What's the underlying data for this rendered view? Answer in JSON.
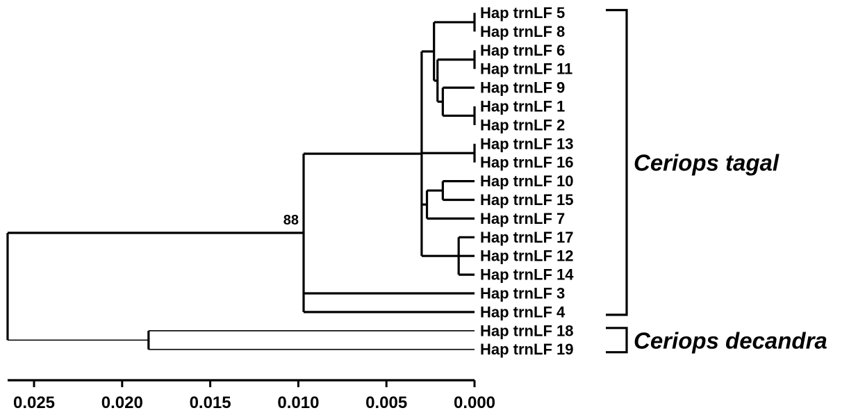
{
  "tree": {
    "tips": [
      "Hap trnLF 5",
      "Hap trnLF 8",
      "Hap trnLF 6",
      "Hap trnLF 11",
      "Hap trnLF 9",
      "Hap trnLF 1",
      "Hap trnLF 2",
      "Hap trnLF 13",
      "Hap trnLF 16",
      "Hap trnLF 10",
      "Hap trnLF 15",
      "Hap trnLF 7",
      "Hap trnLF 17",
      "Hap trnLF 12",
      "Hap trnLF 14",
      "Hap trnLF 3",
      "Hap trnLF 4",
      "Hap trnLF 18",
      "Hap trnLF 19"
    ],
    "nodes": [
      {
        "id": "n58",
        "children": [
          0,
          1
        ],
        "height": 0.0
      },
      {
        "id": "n611",
        "children": [
          2,
          3
        ],
        "height": 0.0
      },
      {
        "id": "n12",
        "children": [
          5,
          6
        ],
        "height": 0.0
      },
      {
        "id": "n912",
        "children": [
          4,
          "n12"
        ],
        "height": 0.0018
      },
      {
        "id": "n6_11_9_12",
        "children": [
          "n611",
          "n912"
        ],
        "height": 0.0021
      },
      {
        "id": "nA",
        "children": [
          "n58",
          "n6_11_9_12"
        ],
        "height": 0.0023
      },
      {
        "id": "n1316",
        "children": [
          7,
          8
        ],
        "height": 0.0
      },
      {
        "id": "n1015",
        "children": [
          9,
          10
        ],
        "height": 0.0018
      },
      {
        "id": "nB",
        "children": [
          "n1015",
          11
        ],
        "height": 0.0027
      },
      {
        "id": "n171214",
        "children": [
          12,
          13,
          14
        ],
        "height": 0.0009
      },
      {
        "id": "nC",
        "children": [
          "nA",
          "n1316",
          "nB",
          "n171214"
        ],
        "height": 0.003
      },
      {
        "id": "nD",
        "children": [
          "nC",
          15,
          16
        ],
        "height": 0.0097
      },
      {
        "id": "nE",
        "children": [
          17,
          18
        ],
        "height": 0.0185
      },
      {
        "id": "root",
        "children": [
          "nD",
          "nE"
        ],
        "height": 0.0265
      }
    ],
    "support": [
      {
        "node": "nD",
        "value": "88"
      }
    ]
  },
  "clades": [
    {
      "label": "Ceriops tagal",
      "from": 0,
      "to": 16
    },
    {
      "label": "Ceriops decandra",
      "from": 17,
      "to": 18
    }
  ],
  "scale_axis": {
    "ticks": [
      "0.025",
      "0.020",
      "0.015",
      "0.010",
      "0.005",
      "0.000"
    ],
    "values": [
      0.025,
      0.02,
      0.015,
      0.01,
      0.005,
      0.0
    ],
    "range": [
      0.0265,
      0.0
    ]
  }
}
